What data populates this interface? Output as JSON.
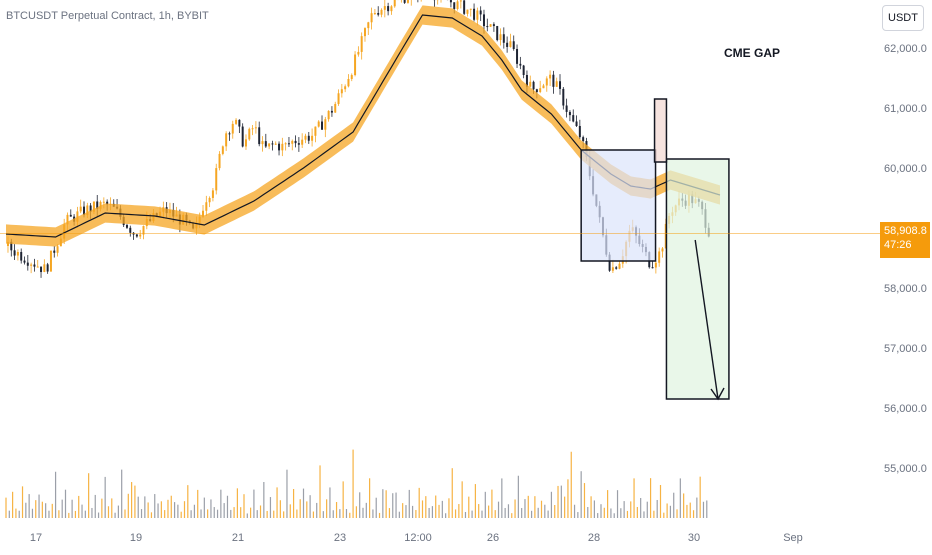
{
  "header": {
    "symbol_title": "BTCUSDT Perpetual Contract, 1h, BYBIT"
  },
  "toolbar": {
    "currency_label": "USDT"
  },
  "last_price": {
    "value": "58,908.8",
    "countdown": "47:26"
  },
  "annotation": {
    "cme_gap": "CME GAP"
  },
  "colors": {
    "accent": "#f59b0c",
    "band_fill": "#f5a623",
    "bullish": "#f5a623",
    "bearish": "#1e2433",
    "box_blue": "#dbe4fb",
    "box_green": "#dff3df",
    "box_red": "#f2d7d2"
  },
  "chart_data": {
    "type": "candlestick",
    "title": "BTCUSDT Perpetual Contract, 1h, BYBIT",
    "ylim": [
      54500,
      62600
    ],
    "y_ticks": [
      "62,000.0",
      "61,000.0",
      "60,000.0",
      "58,000.0",
      "57,000.0",
      "56,000.0",
      "55,000.0"
    ],
    "x_tick_labels": [
      "17",
      "19",
      "21",
      "23",
      "12:00",
      "26",
      "28",
      "30",
      "Sep"
    ],
    "price_path": [
      [
        0,
        58700
      ],
      [
        2,
        58500
      ],
      [
        4,
        58300
      ],
      [
        5,
        58700
      ],
      [
        6,
        59100
      ],
      [
        8,
        59300
      ],
      [
        10,
        59400
      ],
      [
        11,
        59300
      ],
      [
        12,
        59100
      ],
      [
        13,
        58900
      ],
      [
        14,
        59050
      ],
      [
        16,
        59300
      ],
      [
        18,
        59100
      ],
      [
        19,
        58900
      ],
      [
        20,
        59450
      ],
      [
        21,
        59750
      ],
      [
        22,
        60550
      ],
      [
        23,
        60800
      ],
      [
        24,
        60400
      ],
      [
        25,
        60700
      ],
      [
        26,
        60300
      ],
      [
        27,
        60400
      ],
      [
        28,
        60350
      ],
      [
        29,
        60450
      ],
      [
        31,
        60550
      ],
      [
        33,
        61000
      ],
      [
        35,
        61700
      ],
      [
        37,
        62600
      ],
      [
        42,
        63000
      ],
      [
        47,
        62600
      ],
      [
        49,
        62300
      ],
      [
        51,
        62000
      ],
      [
        53,
        61300
      ],
      [
        55,
        61500
      ],
      [
        56,
        61200
      ],
      [
        57,
        60800
      ],
      [
        58,
        60500
      ],
      [
        59,
        59800
      ],
      [
        60,
        59000
      ],
      [
        61,
        58300
      ],
      [
        62,
        58500
      ],
      [
        63,
        59000
      ],
      [
        64,
        58700
      ],
      [
        65,
        58400
      ],
      [
        66,
        58600
      ],
      [
        67,
        59300
      ],
      [
        68,
        59450
      ],
      [
        69,
        59500
      ],
      [
        70,
        59350
      ],
      [
        71,
        58900
      ]
    ],
    "volume_pattern": [
      0.3,
      0.15,
      0.4,
      0.2,
      0.1,
      0.55,
      0.2,
      0.35,
      0.12,
      0.25,
      0.45,
      0.18,
      0.3,
      0.08,
      0.22,
      0.6,
      0.15,
      0.28,
      0.4,
      0.1
    ],
    "ema_path": [
      [
        0,
        58900
      ],
      [
        5,
        58850
      ],
      [
        10,
        59250
      ],
      [
        15,
        59200
      ],
      [
        20,
        59050
      ],
      [
        25,
        59450
      ],
      [
        30,
        60000
      ],
      [
        35,
        60600
      ],
      [
        40,
        62000
      ],
      [
        42,
        62550
      ],
      [
        45,
        62500
      ],
      [
        48,
        62200
      ],
      [
        50,
        61800
      ],
      [
        52,
        61300
      ],
      [
        55,
        60900
      ],
      [
        58,
        60300
      ],
      [
        61,
        59900
      ],
      [
        63,
        59700
      ],
      [
        65,
        59650
      ],
      [
        67,
        59800
      ],
      [
        69,
        59700
      ],
      [
        72,
        59550
      ]
    ],
    "volume_spikes": [
      [
        35,
        0.95
      ],
      [
        57,
        0.92
      ],
      [
        58,
        0.65
      ],
      [
        68,
        0.55
      ],
      [
        38,
        0.4
      ],
      [
        26,
        0.5
      ],
      [
        56,
        0.45
      ],
      [
        13,
        0.45
      ]
    ],
    "cme_gap_box": {
      "t0": 58.0,
      "t1": 65.5,
      "p0": 58450,
      "p1": 60300
    },
    "red_box": {
      "t0": 65.4,
      "t1": 66.6,
      "p0": 60100,
      "p1": 61150
    },
    "target_box": {
      "t0": 66.6,
      "t1": 72.9,
      "p0": 56150,
      "p1": 60150
    },
    "arrow": {
      "t0": 69.5,
      "p0": 58800,
      "t1": 71.8,
      "p1": 56150
    },
    "current_price": 58908.8
  }
}
